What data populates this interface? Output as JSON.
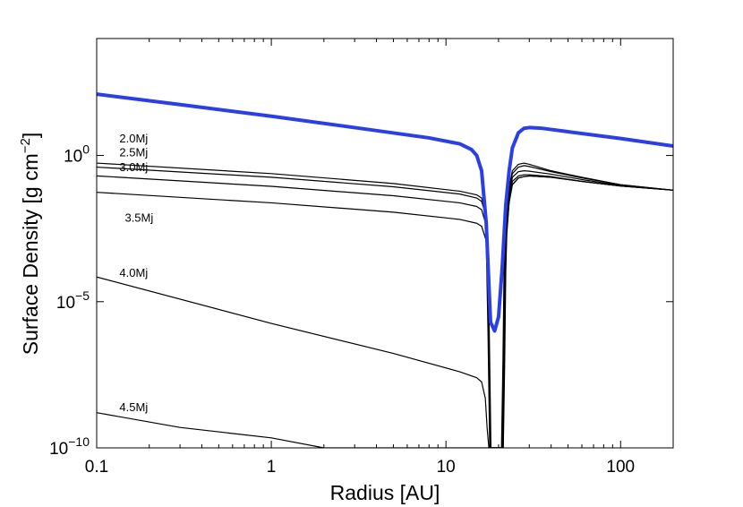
{
  "chart_data": {
    "type": "line",
    "xlabel": "Radius [AU]",
    "ylabel_main": "Surface Density [g cm",
    "ylabel_sup": "−2",
    "ylabel_close": "]",
    "x_scale": "log",
    "y_scale": "log",
    "xlim": [
      0.1,
      200
    ],
    "ylim": [
      1e-10,
      10000.0
    ],
    "grid": false,
    "x_ticks": [
      {
        "value": 0.1,
        "label": "0.1"
      },
      {
        "value": 1,
        "label": "1"
      },
      {
        "value": 10,
        "label": "10"
      },
      {
        "value": 100,
        "label": "100"
      }
    ],
    "y_ticks": [
      {
        "value": 1,
        "base": "10",
        "exp": "0"
      },
      {
        "value": 1e-05,
        "base": "10",
        "exp": "−5"
      },
      {
        "value": 1e-10,
        "base": "10",
        "exp": "−10"
      }
    ],
    "colors": {
      "highlight": "#2a3fe8",
      "curves": "#000000"
    },
    "highlight_series": {
      "x": [
        0.1,
        0.3,
        1,
        3,
        8,
        12,
        14,
        15,
        16,
        17,
        18,
        19,
        20,
        21,
        22,
        23,
        24,
        26,
        28,
        30,
        35,
        50,
        100,
        200
      ],
      "y": [
        125,
        55,
        22,
        9,
        4,
        2.5,
        1.6,
        1.0,
        0.3,
        0.005,
        2e-06,
        1e-06,
        3e-06,
        0.00015,
        0.02,
        0.3,
        1.8,
        6,
        8.5,
        9,
        8.6,
        6.5,
        3.8,
        2.1
      ]
    },
    "series": [
      {
        "name": "2.0Mj",
        "label_x": 0.135,
        "label_y": 2.8,
        "x": [
          0.1,
          1,
          5,
          12,
          15,
          16,
          17,
          17.7,
          18.1,
          20.8,
          21.2,
          21.5,
          22,
          23,
          24,
          26,
          28,
          30,
          40,
          60,
          100,
          200
        ],
        "y": [
          0.55,
          0.24,
          0.11,
          0.06,
          0.045,
          0.035,
          0.01,
          1e-06,
          1e-10,
          1e-10,
          1e-07,
          0.0001,
          0.005,
          0.08,
          0.3,
          0.5,
          0.55,
          0.5,
          0.3,
          0.18,
          0.1,
          0.065
        ]
      },
      {
        "name": "2.5Mj",
        "label_x": 0.135,
        "label_y": 0.95,
        "x": [
          0.1,
          1,
          5,
          12,
          15,
          16,
          17,
          17.6,
          18.0,
          20.9,
          21.3,
          21.6,
          22,
          23,
          24,
          26,
          28,
          30,
          40,
          60,
          100,
          200
        ],
        "y": [
          0.4,
          0.18,
          0.085,
          0.048,
          0.035,
          0.027,
          0.008,
          1e-06,
          1e-10,
          1e-10,
          1e-07,
          0.0001,
          0.004,
          0.06,
          0.24,
          0.4,
          0.45,
          0.42,
          0.28,
          0.17,
          0.1,
          0.065
        ]
      },
      {
        "name": "3.0Mj",
        "label_x": 0.135,
        "label_y": 0.29,
        "x": [
          0.1,
          1,
          5,
          12,
          15,
          16,
          17,
          17.5,
          17.9,
          21.0,
          21.4,
          21.7,
          22,
          23,
          24,
          26,
          28,
          30,
          40,
          60,
          100,
          200
        ],
        "y": [
          0.2,
          0.088,
          0.042,
          0.024,
          0.018,
          0.014,
          0.004,
          1e-06,
          1e-10,
          1e-10,
          1e-07,
          0.0001,
          0.003,
          0.04,
          0.18,
          0.28,
          0.3,
          0.29,
          0.23,
          0.15,
          0.095,
          0.065
        ]
      },
      {
        "name": "3.5Mj",
        "label_x": 0.145,
        "label_y": 0.0055,
        "x": [
          0.1,
          1,
          5,
          12,
          15,
          16,
          17,
          17.4,
          17.8,
          21.1,
          21.5,
          21.8,
          22,
          23,
          24,
          26,
          28,
          30,
          40,
          60,
          100,
          200
        ],
        "y": [
          0.055,
          0.024,
          0.0115,
          0.0065,
          0.0048,
          0.0038,
          0.0012,
          1e-06,
          1e-10,
          1e-10,
          1e-07,
          0.0001,
          0.002,
          0.03,
          0.13,
          0.2,
          0.22,
          0.22,
          0.19,
          0.13,
          0.09,
          0.065
        ]
      },
      {
        "name": "4.0Mj",
        "label_x": 0.135,
        "label_y": 7e-05,
        "x": [
          0.1,
          1,
          5,
          12,
          15,
          16,
          16.8,
          17.2,
          17.6,
          21.2,
          21.6,
          21.9,
          22.2,
          23,
          24,
          26,
          28,
          30,
          40,
          60,
          100,
          200
        ],
        "y": [
          7e-05,
          1.8e-06,
          1.7e-07,
          4e-08,
          2.5e-08,
          1.8e-08,
          5e-09,
          5e-10,
          1e-10,
          1e-10,
          1e-07,
          0.0001,
          0.002,
          0.025,
          0.1,
          0.17,
          0.19,
          0.2,
          0.18,
          0.13,
          0.09,
          0.065
        ]
      },
      {
        "name": "4.5Mj",
        "label_x": 0.135,
        "label_y": 1.8e-09,
        "x": [
          0.1,
          0.3,
          1,
          2,
          17.3,
          17.6,
          21.3,
          21.7,
          22,
          22.3,
          23,
          24,
          26,
          28,
          30,
          40,
          60,
          100,
          200
        ],
        "y": [
          1.6e-09,
          5e-10,
          2.2e-10,
          1e-10,
          1e-10,
          1e-10,
          1e-10,
          1e-07,
          0.0001,
          0.002,
          0.025,
          0.1,
          0.17,
          0.19,
          0.2,
          0.18,
          0.13,
          0.09,
          0.065
        ]
      }
    ]
  }
}
